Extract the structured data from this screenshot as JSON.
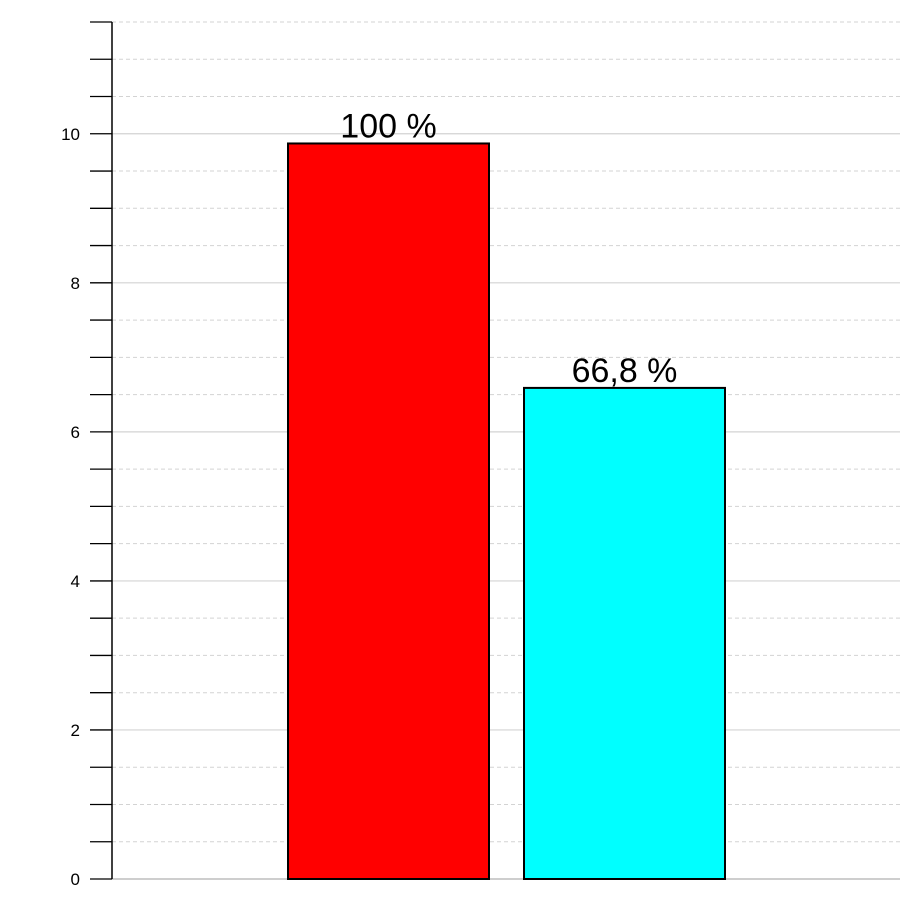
{
  "chart_data": {
    "type": "bar",
    "categories": [
      "",
      ""
    ],
    "values": [
      9.87,
      6.59
    ],
    "data_labels": [
      "100 %",
      "66,8 %"
    ],
    "colors": [
      "#ff0000",
      "#00ffff"
    ],
    "bar_outline": "#000000",
    "ylim": [
      0,
      11.5
    ],
    "yticks": [
      0,
      2,
      4,
      6,
      8,
      10
    ],
    "ytick_labels": [
      "0",
      "2",
      "4",
      "6",
      "8",
      "10"
    ],
    "minor_tick_step": 0.5,
    "title": "",
    "xlabel": "",
    "ylabel": "",
    "grid": {
      "major": true,
      "minor": true,
      "major_color": "#d3d3d3",
      "minor_color": "#d3d3d3",
      "minor_style": "dashed"
    },
    "legend": "none"
  }
}
